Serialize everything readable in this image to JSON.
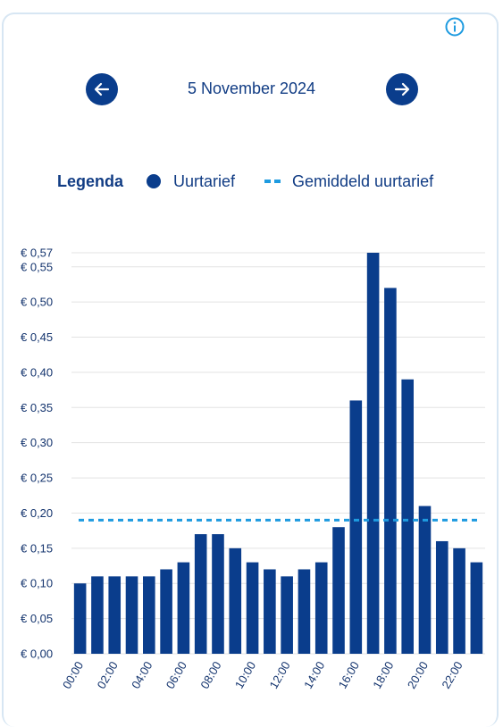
{
  "header": {
    "date": "5 November 2024",
    "prev_icon": "arrow-left-icon",
    "next_icon": "arrow-right-icon",
    "info_icon": "info-icon"
  },
  "legend": {
    "title": "Legenda",
    "bar_label": "Uurtarief",
    "avg_label": "Gemiddeld uurtarief"
  },
  "colors": {
    "bar": "#0a3d8c",
    "average": "#1e9be0",
    "text": "#113c84",
    "grid": "#e3e3e3"
  },
  "chart_data": {
    "type": "bar",
    "categories": [
      "00:00",
      "01:00",
      "02:00",
      "03:00",
      "04:00",
      "05:00",
      "06:00",
      "07:00",
      "08:00",
      "09:00",
      "10:00",
      "11:00",
      "12:00",
      "13:00",
      "14:00",
      "15:00",
      "16:00",
      "17:00",
      "18:00",
      "19:00",
      "20:00",
      "21:00",
      "22:00",
      "23:00"
    ],
    "x_tick_labels": [
      "00:00",
      "02:00",
      "04:00",
      "06:00",
      "08:00",
      "10:00",
      "12:00",
      "14:00",
      "16:00",
      "18:00",
      "20:00",
      "22:00"
    ],
    "y_tick_labels": [
      "€ 0,00",
      "€ 0,05",
      "€ 0,10",
      "€ 0,15",
      "€ 0,20",
      "€ 0,25",
      "€ 0,30",
      "€ 0,35",
      "€ 0,40",
      "€ 0,45",
      "€ 0,50",
      "€ 0,55",
      "€ 0,57"
    ],
    "y_ticks": [
      0,
      0.05,
      0.1,
      0.15,
      0.2,
      0.25,
      0.3,
      0.35,
      0.4,
      0.45,
      0.5,
      0.55,
      0.57
    ],
    "series": [
      {
        "name": "Uurtarief",
        "values": [
          0.1,
          0.11,
          0.11,
          0.11,
          0.11,
          0.12,
          0.13,
          0.17,
          0.17,
          0.15,
          0.13,
          0.12,
          0.11,
          0.12,
          0.13,
          0.18,
          0.36,
          0.57,
          0.52,
          0.39,
          0.21,
          0.16,
          0.15,
          0.13
        ]
      }
    ],
    "average": {
      "name": "Gemiddeld uurtarief",
      "value": 0.19
    },
    "ylim": [
      0,
      0.57
    ],
    "grid": true,
    "legend_position": "top"
  }
}
